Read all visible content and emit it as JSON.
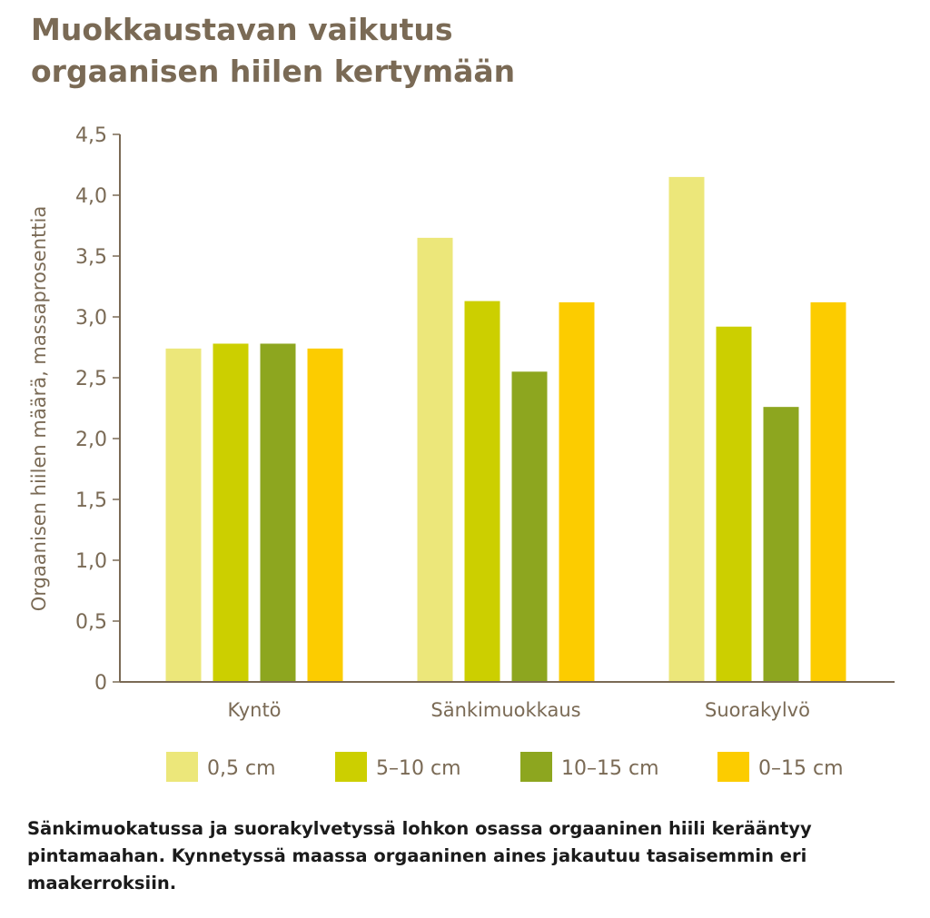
{
  "title": {
    "line1": "Muokkaustavan vaikutus",
    "line2": "orgaanisen hiilen kertymään"
  },
  "caption": "Sänkimuokatussa ja suorakylvetyssä lohkon osassa orgaaninen hiili kerääntyy pintamaahan. Kynnetyssä maassa orgaaninen aines jakautuu tasaisemmin eri maakerroksiin.",
  "colors": {
    "text": "#7a6a55",
    "axis": "#7a6a55"
  },
  "chart_data": {
    "type": "bar",
    "ylabel": "Orgaanisen hiilen määrä, massaprosenttia",
    "xlabel": "",
    "ylim": [
      0,
      4.5
    ],
    "yticks": [
      {
        "value": 0,
        "label": "0"
      },
      {
        "value": 0.5,
        "label": "0,5"
      },
      {
        "value": 1.0,
        "label": "1,0"
      },
      {
        "value": 1.5,
        "label": "1,5"
      },
      {
        "value": 2.0,
        "label": "2,0"
      },
      {
        "value": 2.5,
        "label": "2,5"
      },
      {
        "value": 3.0,
        "label": "3,0"
      },
      {
        "value": 3.5,
        "label": "3,5"
      },
      {
        "value": 4.0,
        "label": "4,0"
      },
      {
        "value": 4.5,
        "label": "4,5"
      }
    ],
    "categories": [
      "Kyntö",
      "Sänkimuokkaus",
      "Suorakylvö"
    ],
    "series": [
      {
        "name": "0,5 cm",
        "color": "#ece77a",
        "values": [
          2.74,
          3.65,
          4.15
        ]
      },
      {
        "name": "5–10 cm",
        "color": "#cccf00",
        "values": [
          2.78,
          3.13,
          2.92
        ]
      },
      {
        "name": "10–15 cm",
        "color": "#8da61f",
        "values": [
          2.78,
          2.55,
          2.26
        ]
      },
      {
        "name": "0–15 cm",
        "color": "#fccc00",
        "values": [
          2.74,
          3.12,
          3.12
        ]
      }
    ],
    "grid": false,
    "legend_position": "bottom"
  }
}
